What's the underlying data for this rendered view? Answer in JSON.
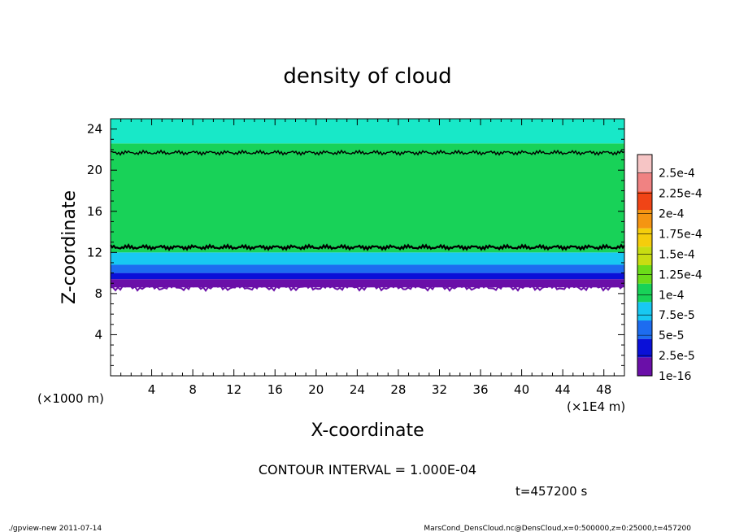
{
  "chart_data": {
    "type": "heatmap",
    "title": "density of cloud",
    "xlabel": "X-coordinate",
    "ylabel": "Z-coordinate",
    "x_unit_left": "(×1000 m)",
    "x_unit_right": "(×1E4 m)",
    "xlim": [
      0,
      50
    ],
    "ylim": [
      0,
      25
    ],
    "x_ticks": [
      4,
      8,
      12,
      16,
      20,
      24,
      28,
      32,
      36,
      40,
      44,
      48
    ],
    "y_ticks": [
      4,
      8,
      12,
      16,
      20,
      24
    ],
    "colorbar": {
      "labels": [
        "1e-16",
        "2.5e-5",
        "5e-5",
        "7.5e-5",
        "1e-4",
        "1.25e-4",
        "1.5e-4",
        "1.75e-4",
        "2e-4",
        "2.25e-4",
        "2.5e-4"
      ],
      "colors": [
        "#6a0fa8",
        "#0a10d8",
        "#1d6cf0",
        "#18c8f2",
        "#18d258",
        "#6bdc19",
        "#c8dd12",
        "#f5cd0c",
        "#f59512",
        "#f04416",
        "#f08282",
        "#f6c5c5"
      ]
    },
    "layers": [
      {
        "z": [
          0,
          8.6
        ],
        "color": "#ffffff"
      },
      {
        "z": [
          8.6,
          9.4
        ],
        "color": "#6a0fa8"
      },
      {
        "z": [
          9.4,
          10.0
        ],
        "color": "#0a10d8"
      },
      {
        "z": [
          10.0,
          10.8
        ],
        "color": "#1d6cf0"
      },
      {
        "z": [
          10.8,
          12.0
        ],
        "color": "#18c8f2"
      },
      {
        "z": [
          12.0,
          22.6
        ],
        "color": "#18d258"
      },
      {
        "z": [
          22.6,
          25.0
        ],
        "color": "#18e8c8"
      }
    ],
    "contour_lines_z": [
      12.5,
      21.7
    ],
    "contour_interval": "CONTOUR INTERVAL = 1.000E-04",
    "time_label": "t=457200 s"
  },
  "footer": {
    "left": "./gpview-new  2011-07-14",
    "right": "MarsCond_DensCloud.nc@DensCloud,x=0:500000,z=0:25000,t=457200"
  }
}
